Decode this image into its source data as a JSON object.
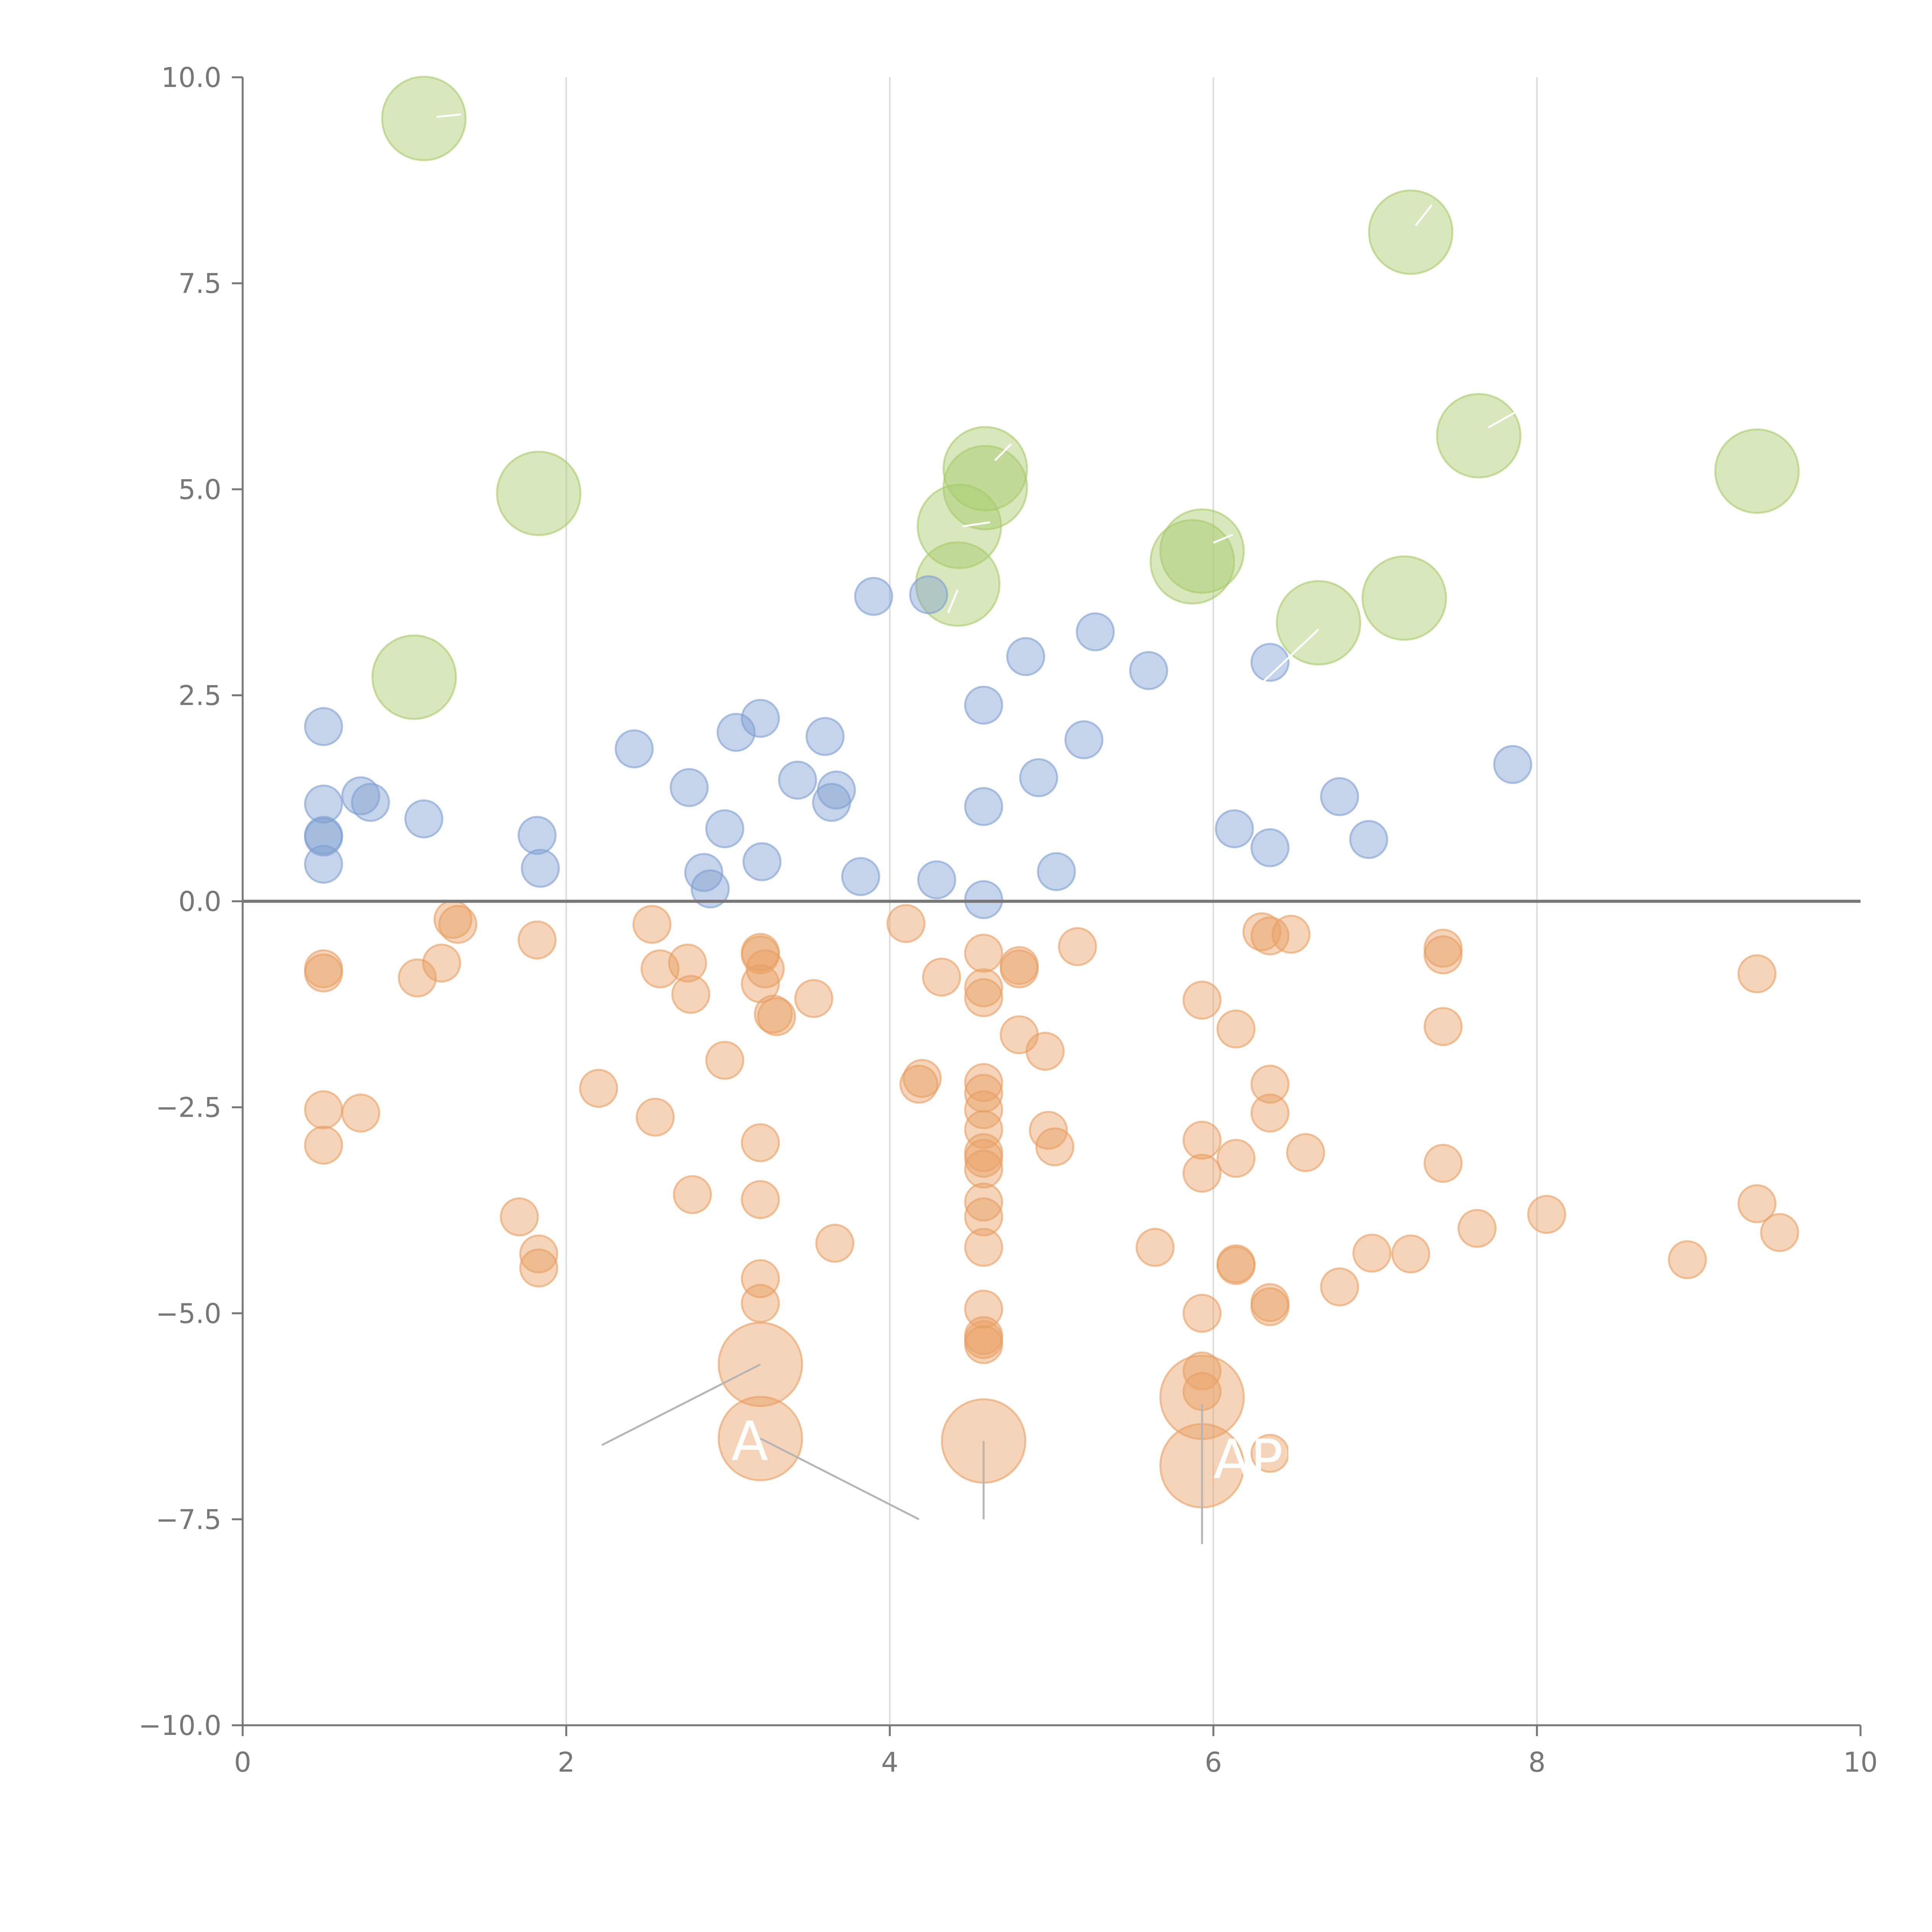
{
  "chart_data": {
    "type": "scatter",
    "title": "",
    "xlabel": "",
    "ylabel": "",
    "xlim": [
      0,
      10
    ],
    "ylim": [
      -10,
      10
    ],
    "x_ticks": [
      0,
      2,
      4,
      6,
      8,
      10
    ],
    "y_ticks": [
      -10.0,
      -7.5,
      -5.0,
      -2.5,
      0.0,
      2.5,
      5.0,
      7.5,
      10.0
    ],
    "x_tick_labels": [
      "0",
      "2",
      "4",
      "6",
      "8",
      "10"
    ],
    "y_tick_labels": [
      "−10.0",
      "−7.5",
      "−5.0",
      "−2.5",
      "0.0",
      "2.5",
      "5.0",
      "7.5",
      "10.0"
    ],
    "grid_x": true,
    "grid_y": false,
    "reference_line_y": 0,
    "series": [
      {
        "name": "green",
        "color": "#a9c96a",
        "size": "large",
        "points": [
          [
            1.12,
            9.5
          ],
          [
            1.83,
            4.95
          ],
          [
            1.06,
            2.72
          ],
          [
            4.59,
            5.25
          ],
          [
            4.43,
            4.55
          ],
          [
            4.42,
            3.85
          ],
          [
            5.93,
            4.25
          ],
          [
            6.65,
            3.38
          ],
          [
            7.18,
            3.68
          ],
          [
            7.22,
            8.12
          ],
          [
            7.64,
            5.65
          ],
          [
            9.36,
            5.22
          ],
          [
            5.87,
            4.12
          ],
          [
            4.59,
            5.02
          ]
        ]
      },
      {
        "name": "blue",
        "color": "#7f9fd0",
        "size": "small",
        "points": [
          [
            0.5,
            2.12
          ],
          [
            0.5,
            1.18
          ],
          [
            0.5,
            0.8
          ],
          [
            0.5,
            0.78
          ],
          [
            0.5,
            0.45
          ],
          [
            0.73,
            1.28
          ],
          [
            0.79,
            1.2
          ],
          [
            1.12,
            1.0
          ],
          [
            1.82,
            0.8
          ],
          [
            1.84,
            0.4
          ],
          [
            2.42,
            1.85
          ],
          [
            2.76,
            1.38
          ],
          [
            2.98,
            0.88
          ],
          [
            2.85,
            0.35
          ],
          [
            2.89,
            0.15
          ],
          [
            3.05,
            2.05
          ],
          [
            3.2,
            2.22
          ],
          [
            3.21,
            0.48
          ],
          [
            3.43,
            1.47
          ],
          [
            3.6,
            2.0
          ],
          [
            3.67,
            1.35
          ],
          [
            3.64,
            1.2
          ],
          [
            3.82,
            0.3
          ],
          [
            3.9,
            3.7
          ],
          [
            4.24,
            3.72
          ],
          [
            4.29,
            0.26
          ],
          [
            4.58,
            2.38
          ],
          [
            4.58,
            1.15
          ],
          [
            4.58,
            0.02
          ],
          [
            4.84,
            2.97
          ],
          [
            4.92,
            1.5
          ],
          [
            5.03,
            0.36
          ],
          [
            5.2,
            1.96
          ],
          [
            5.27,
            3.27
          ],
          [
            5.6,
            2.8
          ],
          [
            6.13,
            0.88
          ],
          [
            6.35,
            2.9
          ],
          [
            6.35,
            0.65
          ],
          [
            6.78,
            1.27
          ],
          [
            6.96,
            0.75
          ],
          [
            7.85,
            1.66
          ]
        ]
      },
      {
        "name": "orange",
        "color": "#e89f63",
        "size": "small",
        "points": [
          [
            0.5,
            -0.82
          ],
          [
            0.5,
            -0.87
          ],
          [
            0.5,
            -2.53
          ],
          [
            0.5,
            -2.96
          ],
          [
            0.73,
            -2.57
          ],
          [
            1.08,
            -0.93
          ],
          [
            1.23,
            -0.75
          ],
          [
            1.3,
            -0.22
          ],
          [
            1.33,
            -0.28
          ],
          [
            1.71,
            -3.83
          ],
          [
            1.82,
            -0.47
          ],
          [
            1.83,
            -4.28
          ],
          [
            1.83,
            -4.45
          ],
          [
            2.2,
            -2.27
          ],
          [
            2.53,
            -0.28
          ],
          [
            2.55,
            -2.62
          ],
          [
            2.58,
            -0.82
          ],
          [
            2.75,
            -0.75
          ],
          [
            2.77,
            -1.13
          ],
          [
            2.78,
            -3.56
          ],
          [
            2.98,
            -1.93
          ],
          [
            3.2,
            -0.62
          ],
          [
            3.2,
            -0.65
          ],
          [
            3.2,
            -1.0
          ],
          [
            3.23,
            -0.82
          ],
          [
            3.28,
            -1.37
          ],
          [
            3.3,
            -1.4
          ],
          [
            3.2,
            -2.93
          ],
          [
            3.2,
            -3.62
          ],
          [
            3.2,
            -4.58
          ],
          [
            3.2,
            -4.88
          ],
          [
            3.53,
            -1.18
          ],
          [
            3.66,
            -4.15
          ],
          [
            4.1,
            -0.27
          ],
          [
            4.2,
            -2.15
          ],
          [
            4.18,
            -2.22
          ],
          [
            4.32,
            -0.92
          ],
          [
            4.58,
            -0.63
          ],
          [
            4.58,
            -1.05
          ],
          [
            4.58,
            -1.17
          ],
          [
            4.58,
            -2.2
          ],
          [
            4.58,
            -2.33
          ],
          [
            4.58,
            -2.53
          ],
          [
            4.58,
            -2.77
          ],
          [
            4.58,
            -3.05
          ],
          [
            4.58,
            -3.12
          ],
          [
            4.58,
            -3.25
          ],
          [
            4.58,
            -3.65
          ],
          [
            4.58,
            -3.83
          ],
          [
            4.58,
            -4.2
          ],
          [
            4.58,
            -4.95
          ],
          [
            4.58,
            -5.27
          ],
          [
            4.58,
            -5.32
          ],
          [
            4.58,
            -5.38
          ],
          [
            4.8,
            -0.78
          ],
          [
            4.8,
            -0.82
          ],
          [
            4.8,
            -1.62
          ],
          [
            4.96,
            -1.82
          ],
          [
            4.98,
            -2.78
          ],
          [
            5.02,
            -2.98
          ],
          [
            5.16,
            -0.55
          ],
          [
            5.64,
            -4.2
          ],
          [
            5.93,
            -1.2
          ],
          [
            5.93,
            -2.9
          ],
          [
            5.93,
            -3.3
          ],
          [
            5.93,
            -5.0
          ],
          [
            5.93,
            -5.7
          ],
          [
            5.93,
            -5.95
          ],
          [
            6.14,
            -1.55
          ],
          [
            6.14,
            -3.12
          ],
          [
            6.14,
            -4.4
          ],
          [
            6.14,
            -4.42
          ],
          [
            6.3,
            -0.37
          ],
          [
            6.35,
            -0.42
          ],
          [
            6.35,
            -2.22
          ],
          [
            6.35,
            -2.57
          ],
          [
            6.35,
            -4.87
          ],
          [
            6.35,
            -4.92
          ],
          [
            6.35,
            -6.7
          ],
          [
            6.48,
            -0.4
          ],
          [
            6.57,
            -3.05
          ],
          [
            6.78,
            -4.68
          ],
          [
            6.98,
            -4.27
          ],
          [
            7.22,
            -4.28
          ],
          [
            7.42,
            -0.57
          ],
          [
            7.42,
            -0.65
          ],
          [
            7.42,
            -1.52
          ],
          [
            7.42,
            -3.18
          ],
          [
            7.63,
            -3.97
          ],
          [
            8.06,
            -3.8
          ],
          [
            8.93,
            -4.35
          ],
          [
            9.36,
            -0.88
          ],
          [
            9.36,
            -3.67
          ],
          [
            9.5,
            -4.02
          ]
        ]
      },
      {
        "name": "orange-highlight",
        "color": "#e89f63",
        "size": "large",
        "points": [
          [
            3.2,
            -5.62
          ],
          [
            3.2,
            -6.52
          ],
          [
            4.58,
            -6.55
          ],
          [
            5.93,
            -6.02
          ],
          [
            5.93,
            -6.85
          ]
        ]
      }
    ],
    "annotations": [
      {
        "text": "A",
        "x": 3.02,
        "y": -6.78
      },
      {
        "text": "APP",
        "x": 6.0,
        "y": -7.0
      }
    ]
  }
}
